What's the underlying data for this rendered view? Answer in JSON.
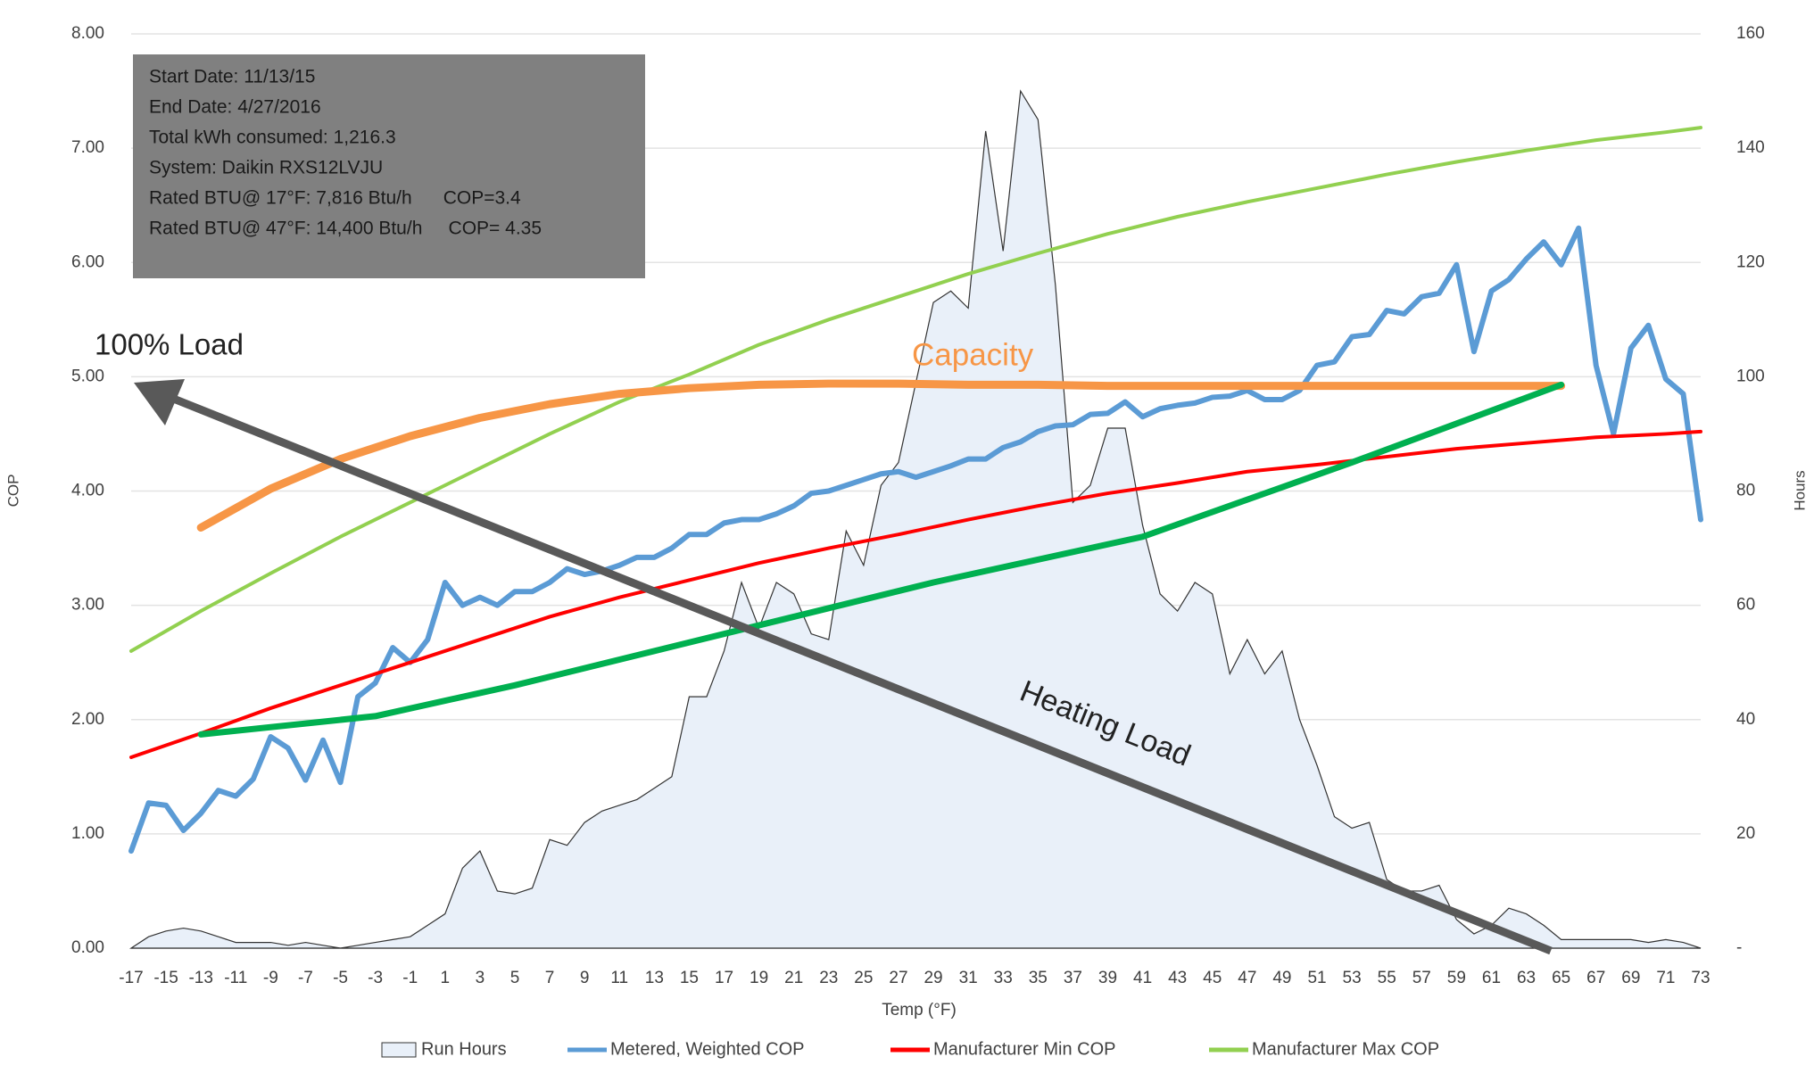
{
  "chart_data": {
    "type": "line",
    "xlabel": "Temp (°F)",
    "ylabel": "COP",
    "y2label": "Hours",
    "xlim": [
      -17,
      73
    ],
    "xticks": [
      -17,
      -15,
      -13,
      -11,
      -9,
      -7,
      -5,
      -3,
      -1,
      1,
      3,
      5,
      7,
      9,
      11,
      13,
      15,
      17,
      19,
      21,
      23,
      25,
      27,
      29,
      31,
      33,
      35,
      37,
      39,
      41,
      43,
      45,
      47,
      49,
      51,
      53,
      55,
      57,
      59,
      61,
      63,
      65,
      67,
      69,
      71,
      73
    ],
    "ylim": [
      0,
      8
    ],
    "yticks": [
      {
        "value": 0,
        "label": "0.00"
      },
      {
        "value": 1,
        "label": "1.00"
      },
      {
        "value": 2,
        "label": "2.00"
      },
      {
        "value": 3,
        "label": "3.00"
      },
      {
        "value": 4,
        "label": "4.00"
      },
      {
        "value": 5,
        "label": "5.00"
      },
      {
        "value": 6,
        "label": "6.00"
      },
      {
        "value": 7,
        "label": "7.00"
      },
      {
        "value": 8,
        "label": "8.00"
      }
    ],
    "y2lim": [
      0,
      160
    ],
    "y2ticks": [
      {
        "value": 0,
        "label": "-"
      },
      20,
      40,
      60,
      80,
      100,
      120,
      140,
      160
    ],
    "grid": true,
    "legend": "bottom",
    "info_box": {
      "lines": [
        "Start Date: 11/13/15",
        "End Date: 4/27/2016",
        "Total kWh consumed: 1,216.3",
        "System: Daikin RXS12LVJU",
        "Rated BTU@ 17°F: 7,816 Btu/h      COP=3.4",
        "Rated BTU@ 47°F: 14,400 Btu/h     COP= 4.35"
      ]
    },
    "annotations": [
      "100% Load",
      "Heating Load"
    ],
    "series": [
      {
        "name": "Run Hours",
        "kind": "area",
        "axis": "y2",
        "color": "#e9f0f9",
        "edge": "#333333",
        "x": [
          -17,
          -16,
          -15,
          -14,
          -13,
          -12,
          -11,
          -10,
          -9,
          -8,
          -7,
          -6,
          -5,
          -4,
          -3,
          -2,
          -1,
          0,
          1,
          2,
          3,
          4,
          5,
          6,
          7,
          8,
          9,
          10,
          11,
          12,
          13,
          14,
          15,
          16,
          17,
          18,
          19,
          20,
          21,
          22,
          23,
          24,
          25,
          26,
          27,
          28,
          29,
          30,
          31,
          32,
          33,
          34,
          35,
          36,
          37,
          38,
          39,
          40,
          41,
          42,
          43,
          44,
          45,
          46,
          47,
          48,
          49,
          50,
          51,
          52,
          53,
          54,
          55,
          56,
          57,
          58,
          59,
          60,
          61,
          62,
          63,
          64,
          65,
          66,
          67,
          68,
          69,
          70,
          71,
          72,
          73
        ],
        "values": [
          0,
          2,
          3,
          3.5,
          3,
          2,
          1,
          1,
          1,
          0.5,
          1,
          0.5,
          0,
          0.5,
          1,
          1.5,
          2,
          4,
          6,
          14,
          17,
          10,
          9.5,
          10.5,
          19,
          18,
          22,
          24,
          25,
          26,
          28,
          30,
          44,
          44,
          52,
          64,
          56,
          64,
          62,
          55,
          54,
          73,
          67,
          81,
          85,
          99,
          113,
          115,
          112,
          143,
          122,
          150,
          145,
          116,
          78,
          81,
          91,
          91,
          74,
          62,
          59,
          64,
          62,
          48,
          54,
          48,
          52,
          40,
          32,
          23,
          21,
          22,
          12,
          10,
          10,
          11,
          5,
          2.5,
          4,
          7,
          6,
          4,
          1.5,
          1.5,
          1.5,
          1.5,
          1.5,
          1,
          1.5,
          1,
          0
        ]
      },
      {
        "name": "Metered, Weighted COP",
        "kind": "line",
        "color": "#5b9bd5",
        "width": 6,
        "x": [
          -17,
          -16,
          -15,
          -14,
          -13,
          -12,
          -11,
          -10,
          -9,
          -8,
          -7,
          -6,
          -5,
          -4,
          -3,
          -2,
          -1,
          0,
          1,
          2,
          3,
          4,
          5,
          6,
          7,
          8,
          9,
          10,
          11,
          12,
          13,
          14,
          15,
          16,
          17,
          18,
          19,
          20,
          21,
          22,
          23,
          24,
          25,
          26,
          27,
          28,
          29,
          30,
          31,
          32,
          33,
          34,
          35,
          36,
          37,
          38,
          39,
          40,
          41,
          42,
          43,
          44,
          45,
          46,
          47,
          48,
          49,
          50,
          51,
          52,
          53,
          54,
          55,
          56,
          57,
          58,
          59,
          60,
          61,
          62,
          63,
          64,
          65,
          66,
          67,
          68,
          69,
          70,
          71,
          72,
          73
        ],
        "values": [
          0.85,
          1.27,
          1.25,
          1.03,
          1.18,
          1.38,
          1.33,
          1.48,
          1.85,
          1.75,
          1.47,
          1.82,
          1.45,
          2.2,
          2.32,
          2.63,
          2.5,
          2.7,
          3.2,
          3.0,
          3.07,
          3.0,
          3.12,
          3.12,
          3.2,
          3.32,
          3.27,
          3.3,
          3.35,
          3.42,
          3.42,
          3.5,
          3.62,
          3.62,
          3.72,
          3.75,
          3.75,
          3.8,
          3.87,
          3.98,
          4.0,
          4.05,
          4.1,
          4.15,
          4.17,
          4.12,
          4.17,
          4.22,
          4.28,
          4.28,
          4.38,
          4.43,
          4.52,
          4.57,
          4.58,
          4.67,
          4.68,
          4.78,
          4.65,
          4.72,
          4.75,
          4.77,
          4.82,
          4.83,
          4.88,
          4.8,
          4.8,
          4.88,
          5.1,
          5.13,
          5.35,
          5.37,
          5.58,
          5.55,
          5.7,
          5.73,
          5.98,
          5.22,
          5.75,
          5.85,
          6.03,
          6.18,
          5.98,
          6.3,
          5.1,
          4.5,
          5.25,
          5.45,
          4.98,
          4.85,
          3.75
        ]
      },
      {
        "name": "Manufacturer Min COP",
        "kind": "line",
        "color": "#ff0000",
        "width": 4,
        "x": [
          -17,
          -13,
          -9,
          -5,
          -1,
          3,
          7,
          11,
          15,
          19,
          23,
          27,
          31,
          35,
          39,
          43,
          47,
          51,
          55,
          59,
          63,
          67,
          71,
          73
        ],
        "values": [
          1.67,
          1.88,
          2.1,
          2.3,
          2.5,
          2.7,
          2.9,
          3.07,
          3.22,
          3.37,
          3.5,
          3.62,
          3.75,
          3.87,
          3.98,
          4.07,
          4.17,
          4.23,
          4.3,
          4.37,
          4.42,
          4.47,
          4.5,
          4.52
        ]
      },
      {
        "name": "Manufacturer Max COP",
        "kind": "line",
        "color": "#92d050",
        "width": 4,
        "x": [
          -17,
          -13,
          -9,
          -5,
          -1,
          3,
          7,
          11,
          15,
          19,
          23,
          27,
          31,
          35,
          39,
          43,
          47,
          51,
          55,
          59,
          63,
          67,
          71,
          73
        ],
        "values": [
          2.6,
          2.95,
          3.28,
          3.6,
          3.9,
          4.2,
          4.5,
          4.78,
          5.02,
          5.28,
          5.5,
          5.7,
          5.9,
          6.08,
          6.25,
          6.4,
          6.53,
          6.65,
          6.77,
          6.88,
          6.98,
          7.07,
          7.14,
          7.18
        ]
      },
      {
        "name": "Capacity",
        "kind": "line",
        "color": "#f79646",
        "width": 9,
        "legend": false,
        "x": [
          -13,
          -9,
          -5,
          -1,
          3,
          7,
          11,
          15,
          19,
          23,
          27,
          31,
          35,
          39,
          43,
          47,
          51,
          55,
          59,
          63,
          65
        ],
        "values": [
          3.68,
          4.02,
          4.28,
          4.48,
          4.64,
          4.76,
          4.85,
          4.9,
          4.93,
          4.94,
          4.94,
          4.93,
          4.93,
          4.92,
          4.92,
          4.92,
          4.92,
          4.92,
          4.92,
          4.92,
          4.92
        ]
      },
      {
        "kind": "line",
        "color": "#00b050",
        "width": 7,
        "legend": false,
        "x": [
          -13,
          -3,
          5,
          13,
          21,
          29,
          41,
          53,
          65
        ],
        "values": [
          1.87,
          2.03,
          2.3,
          2.6,
          2.9,
          3.2,
          3.6,
          4.25,
          4.93
        ]
      }
    ]
  }
}
